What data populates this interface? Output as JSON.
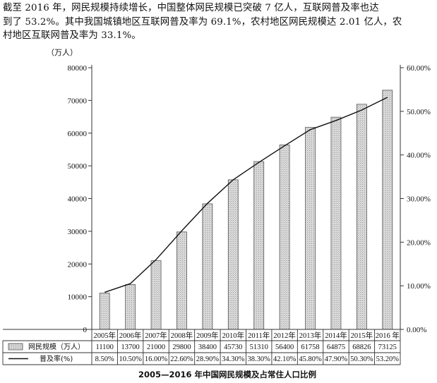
{
  "intro": {
    "lines": [
      "截至 2016 年，网民规模持续增长，中国整体网民规模已突破 7 亿人，互联网普及率也达",
      "到了 53.2%。其中我国城镇地区互联网普及率为 69.1%，农村地区网民规模达 2.01 亿人，农",
      "村地区互联网普及率为 33.1%。"
    ]
  },
  "chart_data": {
    "type": "bar",
    "title": "2005—2016 年中国网民规模及占常住人口比例",
    "left_axis_unit": "（万人）",
    "categories": [
      "2005年",
      "2006年",
      "2007年",
      "2008年",
      "2009年",
      "2010年",
      "2011年",
      "2012年",
      "2013年",
      "2014年",
      "2015年",
      "2016 年"
    ],
    "series": [
      {
        "name": "网民规模（万人）",
        "kind": "bar",
        "axis": "left",
        "values": [
          11100,
          13700,
          21000,
          29800,
          38400,
          45730,
          51310,
          56400,
          61758,
          64875,
          68826,
          73125
        ],
        "labels": [
          "11100",
          "13700",
          "21000",
          "29800",
          "38400",
          "45730",
          "51310",
          "56400",
          "61758",
          "64875",
          "68826",
          "73125"
        ]
      },
      {
        "name": "普及率(%)",
        "kind": "line",
        "axis": "right",
        "values": [
          8.5,
          10.5,
          16.0,
          22.6,
          28.9,
          34.3,
          38.3,
          42.1,
          45.8,
          47.9,
          50.3,
          53.2
        ],
        "labels": [
          "8.50%",
          "10.50%",
          "16.00%",
          "22.60%",
          "28.90%",
          "34.30%",
          "38.30%",
          "42.10%",
          "45.80%",
          "47.90%",
          "50.30%",
          "53.20%"
        ]
      }
    ],
    "left_axis": {
      "ylim": [
        0,
        80000
      ],
      "ticks": [
        0,
        10000,
        20000,
        30000,
        40000,
        50000,
        60000,
        70000,
        80000
      ],
      "tick_labels": [
        "0",
        "10000",
        "20000",
        "30000",
        "40000",
        "50000",
        "60000",
        "70000",
        "80000"
      ]
    },
    "right_axis": {
      "ylim": [
        0,
        60
      ],
      "ticks": [
        0,
        10,
        20,
        30,
        40,
        50,
        60
      ],
      "tick_labels": [
        "0.00%",
        "10.00%",
        "20.00%",
        "30.00%",
        "40.00%",
        "50.00%",
        "60.00%"
      ]
    },
    "grid": false,
    "legend": "bottom data table"
  }
}
